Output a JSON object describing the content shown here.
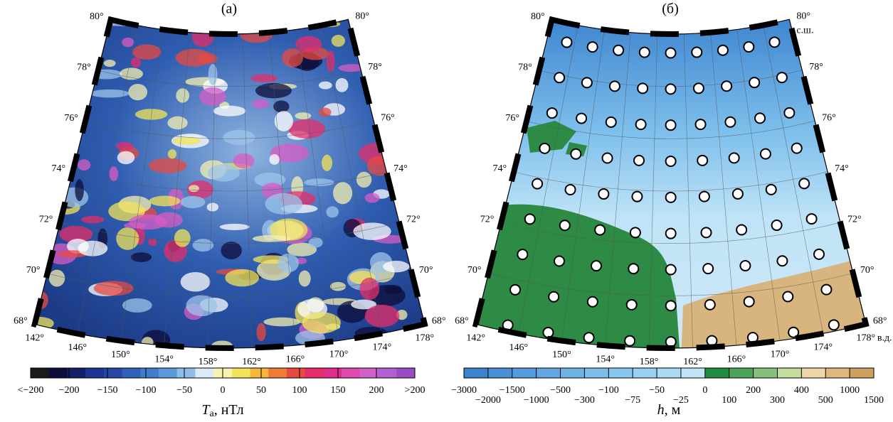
{
  "panels": [
    {
      "label": "(а)",
      "lat_labels": [
        "80°",
        "78°",
        "76°",
        "74°",
        "72°",
        "70°",
        "68°"
      ],
      "lon_labels": [
        "142°",
        "146°",
        "150°",
        "154°",
        "158°",
        "162°",
        "166°",
        "170°",
        "174°",
        "178°"
      ],
      "colorbar": {
        "ticks": [
          "<−200",
          "−200",
          "−150",
          "−100",
          "−50",
          "0",
          "50",
          "100",
          "150",
          "200",
          ">200"
        ],
        "colors": [
          "#1a1a1a",
          "#0d0d3a",
          "#15206a",
          "#1d3590",
          "#2747a6",
          "#3060b8",
          "#3f7ccc",
          "#5b9ad9",
          "#8ebde8",
          "#d8ebf7",
          "#f6f3b0",
          "#f2e45a",
          "#f5b83c",
          "#f07a36",
          "#e84a42",
          "#e52d6a",
          "#e02d8c",
          "#e04ab0",
          "#d060c8",
          "#b060d0",
          "#9a4cc6"
        ],
        "symbol": "T",
        "subscript": "а",
        "unit": ", нТл"
      }
    },
    {
      "label": "(б)",
      "lat_labels": [
        "80°",
        "78°",
        "76°",
        "74°",
        "72°",
        "70°",
        "68°"
      ],
      "lat_unit": "с.ш.",
      "lon_labels": [
        "142°",
        "146°",
        "150°",
        "154°",
        "158°",
        "162°",
        "166°",
        "170°",
        "174°",
        "178°"
      ],
      "lon_unit": "в.д.",
      "colorbar": {
        "ticks": [
          "−3000",
          "−2000",
          "−1500",
          "−1000",
          "−500",
          "−300",
          "−100",
          "−75",
          "−50",
          "−25",
          "0",
          "100",
          "200",
          "300",
          "400",
          "500",
          "1000",
          "1500"
        ],
        "colors": [
          "#3d82cc",
          "#4a8fd4",
          "#569bdb",
          "#62a7e1",
          "#6fb2e6",
          "#7dbdea",
          "#8ac7ee",
          "#99d0f1",
          "#abdaf4",
          "#c2e5f7",
          "#238a43",
          "#4ca35a",
          "#86c07a",
          "#c4dc9c",
          "#eed6a8",
          "#e0b77c",
          "#cfa060"
        ],
        "symbol": "h",
        "unit": ", м"
      }
    }
  ]
}
